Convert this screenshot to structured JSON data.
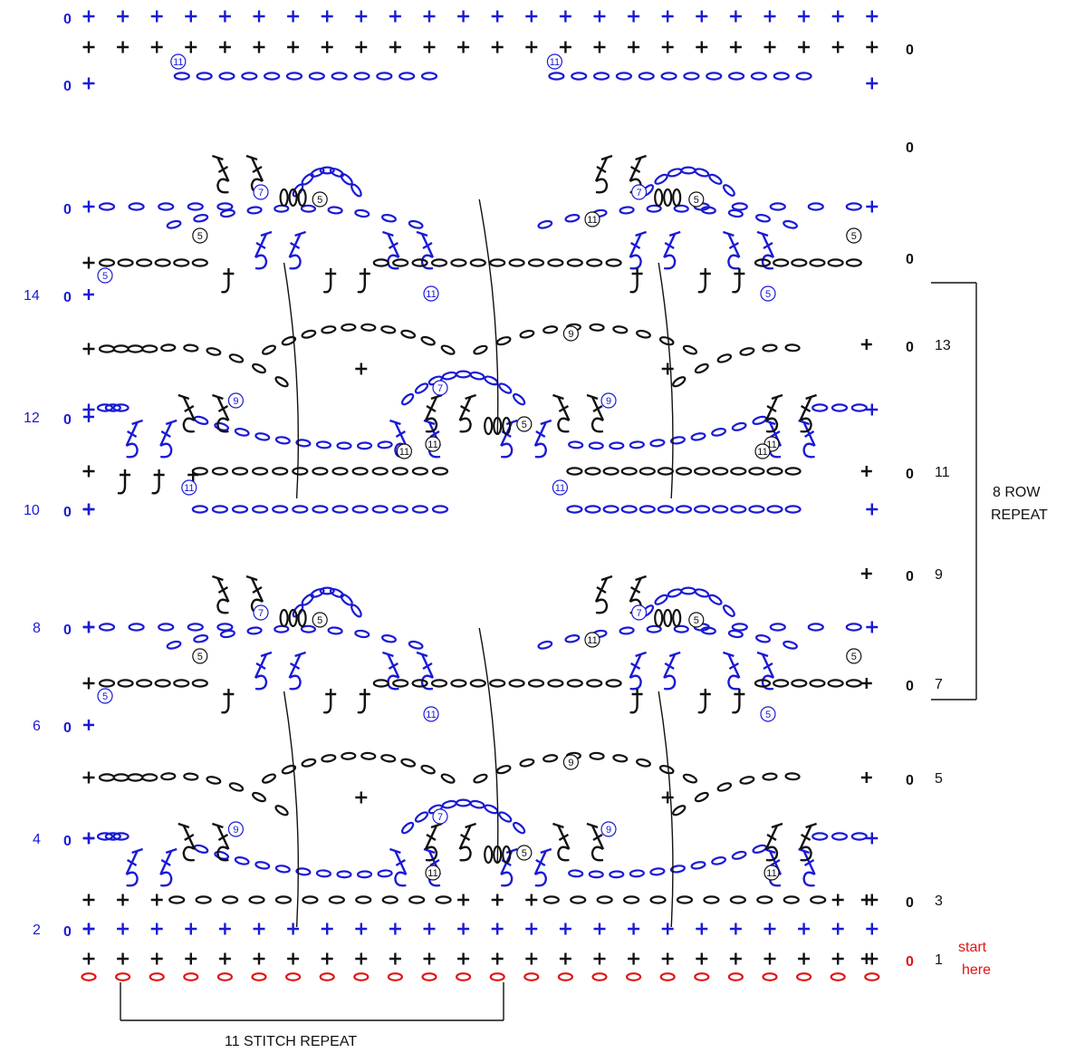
{
  "colors": {
    "black": "#111111",
    "blue": "#1a1ad6",
    "red": "#e01414",
    "background": "#ffffff"
  },
  "row_labels": {
    "odd": [
      "1",
      "3",
      "5",
      "7",
      "9",
      "11",
      "13"
    ],
    "even": [
      "2",
      "4",
      "6",
      "8",
      "10",
      "12",
      "14"
    ]
  },
  "turning_mark": "0",
  "stitch_symbols": {
    "single_crochet": "+",
    "chain": "o",
    "foundation_chain": "o"
  },
  "chain_counts": [
    "5",
    "7",
    "9",
    "11"
  ],
  "annotations": {
    "start": [
      "start",
      "here"
    ],
    "row_repeat": [
      "8 ROW",
      "REPEAT"
    ],
    "stitch_repeat": "11 STITCH REPEAT"
  }
}
